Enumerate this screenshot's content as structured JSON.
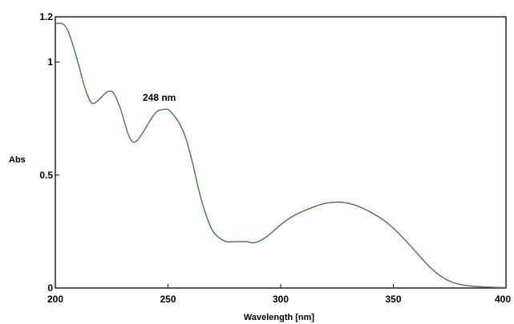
{
  "chart_data": {
    "type": "line",
    "title": "",
    "xlabel": "Wavelength [nm]",
    "ylabel": "Abs",
    "xlim": [
      200,
      400
    ],
    "ylim": [
      0,
      1.2
    ],
    "x_ticks": [
      200,
      250,
      300,
      350,
      400
    ],
    "y_ticks": [
      0,
      0.5,
      1,
      1.2
    ],
    "x_tick_labels": [
      "200",
      "250",
      "300",
      "350",
      "400"
    ],
    "y_tick_labels": [
      "0",
      "0.5",
      "1",
      "1.2"
    ],
    "grid": false,
    "legend": "none",
    "line_color": "#3f7d3f",
    "annotations": [
      {
        "text": "248 nm",
        "x": 248,
        "y": 0.79
      }
    ],
    "series": [
      {
        "x": [
          200,
          203,
          205,
          207,
          210,
          213,
          216,
          219,
          222,
          224,
          226,
          229,
          232,
          234,
          236,
          239,
          242,
          245,
          248,
          250,
          252,
          255,
          258,
          261,
          264,
          267,
          270,
          273,
          276,
          280,
          285,
          288,
          292,
          296,
          300,
          305,
          310,
          315,
          320,
          325,
          328,
          332,
          336,
          340,
          345,
          350,
          355,
          360,
          365,
          370,
          375,
          380,
          385,
          390,
          395,
          400
        ],
        "y": [
          1.17,
          1.17,
          1.15,
          1.1,
          1.0,
          0.89,
          0.82,
          0.83,
          0.86,
          0.87,
          0.86,
          0.79,
          0.69,
          0.65,
          0.65,
          0.69,
          0.74,
          0.78,
          0.79,
          0.79,
          0.77,
          0.73,
          0.66,
          0.55,
          0.42,
          0.32,
          0.25,
          0.22,
          0.205,
          0.205,
          0.205,
          0.2,
          0.215,
          0.245,
          0.28,
          0.315,
          0.34,
          0.36,
          0.375,
          0.38,
          0.378,
          0.37,
          0.355,
          0.335,
          0.305,
          0.265,
          0.215,
          0.16,
          0.105,
          0.06,
          0.03,
          0.015,
          0.008,
          0.005,
          0.003,
          0.002
        ]
      }
    ]
  }
}
